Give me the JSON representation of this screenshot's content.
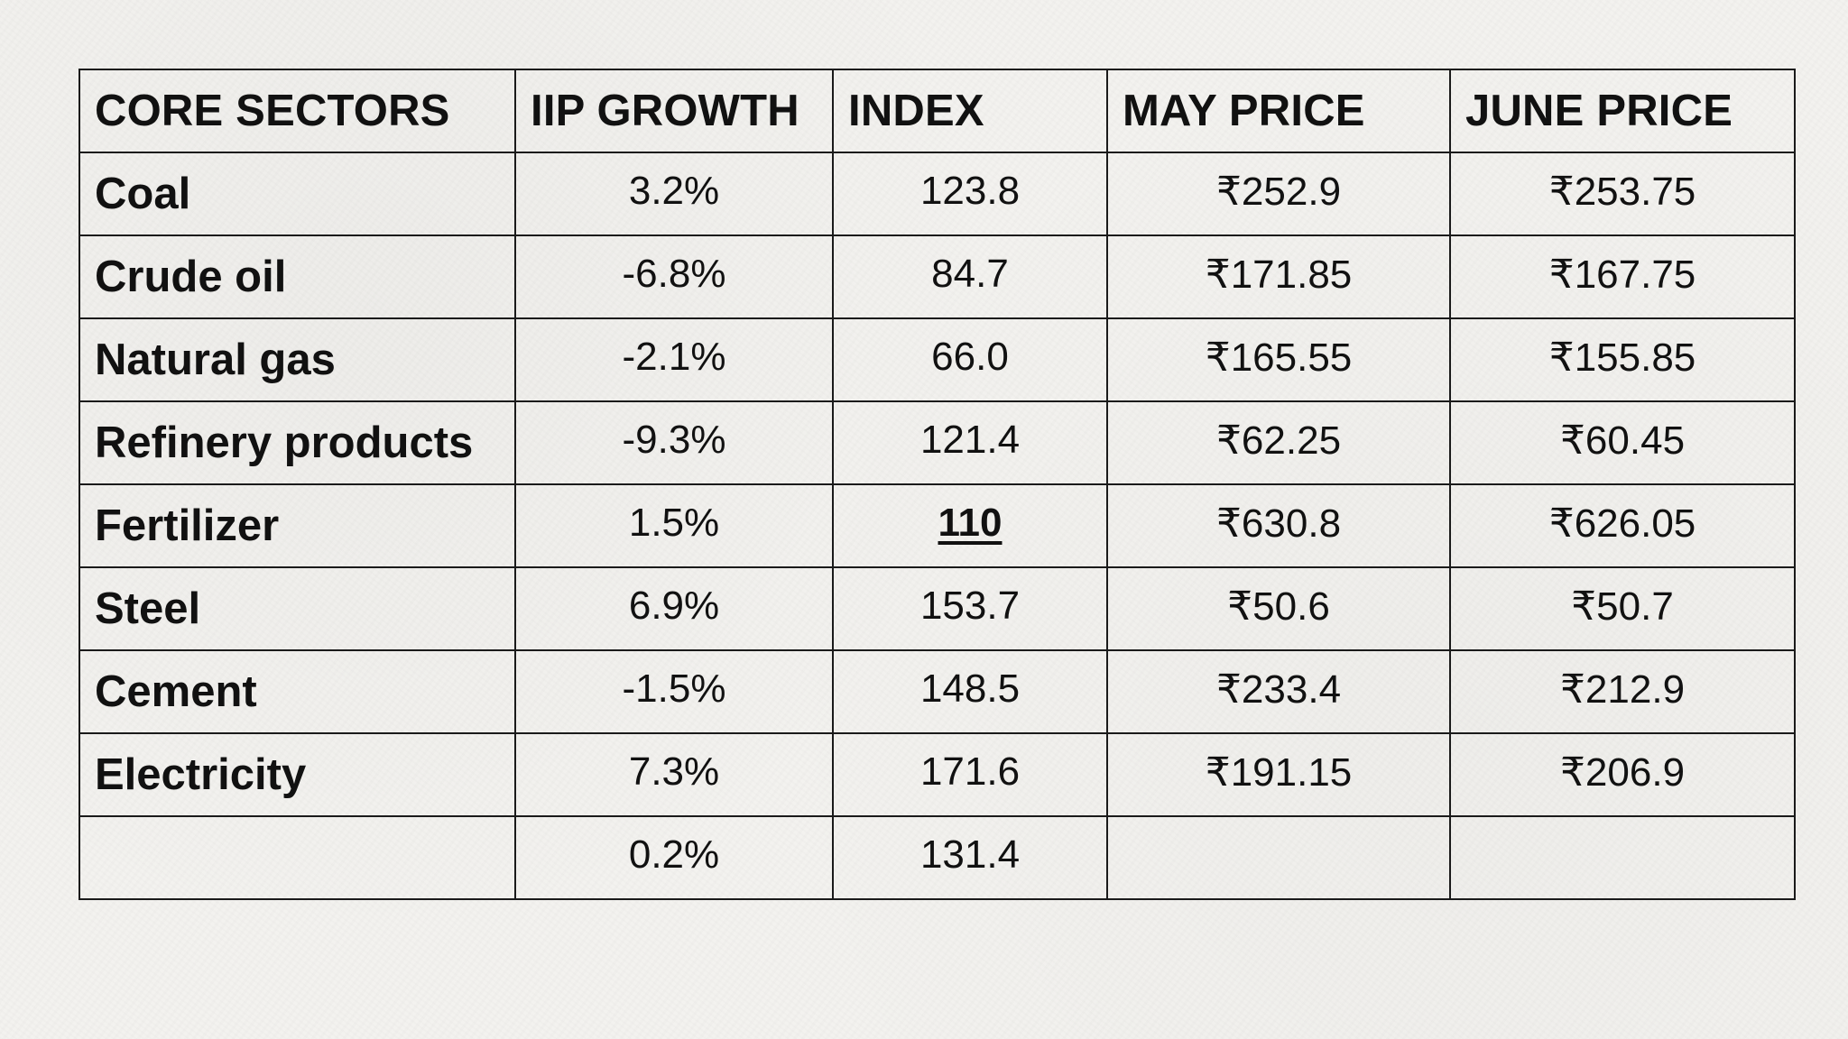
{
  "table": {
    "headers": [
      "CORE SECTORS",
      "IIP GROWTH",
      "INDEX",
      "MAY PRICE",
      "JUNE PRICE"
    ],
    "rows": [
      {
        "sector": "Coal",
        "iip_growth": "3.2%",
        "index": "123.8",
        "may_price": "₹252.9",
        "june_price": "₹253.75"
      },
      {
        "sector": "Crude oil",
        "iip_growth": "-6.8%",
        "index": "84.7",
        "may_price": "₹171.85",
        "june_price": "₹167.75"
      },
      {
        "sector": "Natural gas",
        "iip_growth": "-2.1%",
        "index": "66.0",
        "may_price": "₹165.55",
        "june_price": "₹155.85"
      },
      {
        "sector": "Refinery products",
        "iip_growth": "-9.3%",
        "index": "121.4",
        "may_price": "₹62.25",
        "june_price": "₹60.45"
      },
      {
        "sector": "Fertilizer",
        "iip_growth": "1.5%",
        "index": "110",
        "may_price": "₹630.8",
        "june_price": "₹626.05"
      },
      {
        "sector": "Steel",
        "iip_growth": "6.9%",
        "index": "153.7",
        "may_price": "₹50.6",
        "june_price": "₹50.7"
      },
      {
        "sector": "Cement",
        "iip_growth": "-1.5%",
        "index": "148.5",
        "may_price": "₹233.4",
        "june_price": "₹212.9"
      },
      {
        "sector": "Electricity",
        "iip_growth": "7.3%",
        "index": "171.6",
        "may_price": "₹191.15",
        "june_price": "₹206.9"
      },
      {
        "sector": "",
        "iip_growth": "0.2%",
        "index": "131.4",
        "may_price": "",
        "june_price": ""
      }
    ]
  }
}
